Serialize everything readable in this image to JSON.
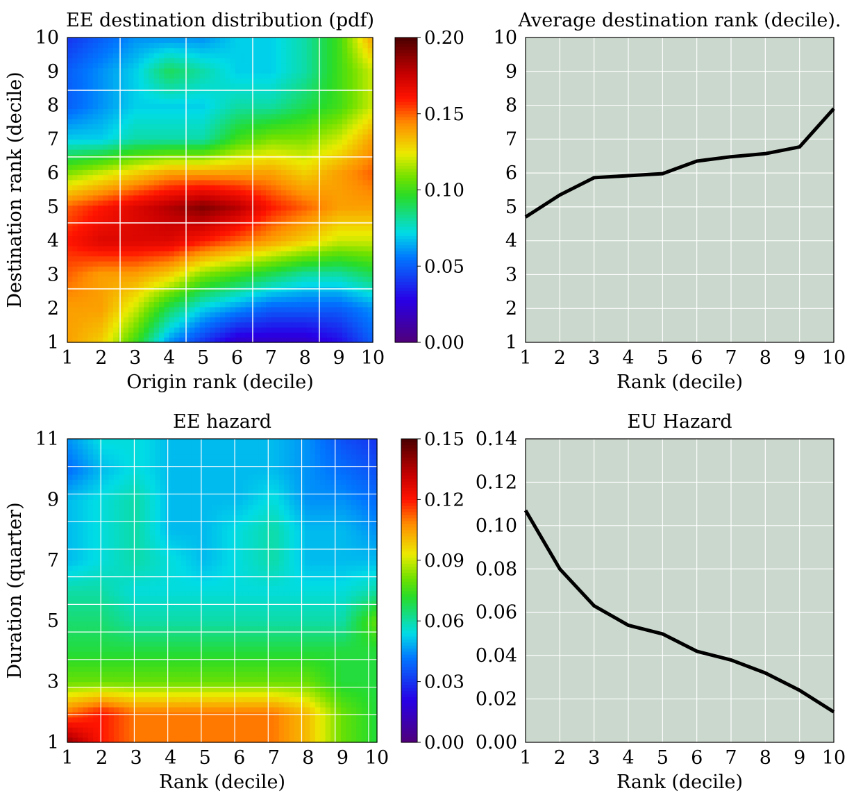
{
  "chart_data": [
    {
      "type": "heatmap",
      "title": "EE destination distribution (pdf)",
      "xlabel": "Origin rank (decile)",
      "ylabel": "Destination rank (decile)",
      "x_ticks": [
        "1",
        "2",
        "3",
        "4",
        "5",
        "6",
        "7",
        "8",
        "9",
        "10"
      ],
      "y_ticks": [
        "1",
        "2",
        "3",
        "4",
        "5",
        "6",
        "7",
        "8",
        "9",
        "10"
      ],
      "xlim": [
        1,
        10
      ],
      "ylim": [
        1,
        10
      ],
      "grid": true,
      "colorbar": {
        "min": 0.0,
        "max": 0.2,
        "ticks": [
          "0.00",
          "0.05",
          "0.10",
          "0.15",
          "0.20"
        ]
      },
      "x": [
        1,
        2,
        3,
        4,
        5,
        6,
        7,
        8,
        9,
        10
      ],
      "y": [
        1,
        2,
        3,
        4,
        5,
        6,
        7,
        8,
        9,
        10
      ],
      "z": [
        [
          0.14,
          0.13,
          0.1,
          0.06,
          0.04,
          0.02,
          0.02,
          0.02,
          0.03,
          0.05
        ],
        [
          0.14,
          0.14,
          0.12,
          0.09,
          0.07,
          0.06,
          0.05,
          0.05,
          0.05,
          0.06
        ],
        [
          0.15,
          0.14,
          0.14,
          0.13,
          0.11,
          0.1,
          0.09,
          0.08,
          0.08,
          0.09
        ],
        [
          0.16,
          0.17,
          0.17,
          0.17,
          0.16,
          0.15,
          0.14,
          0.13,
          0.12,
          0.12
        ],
        [
          0.15,
          0.16,
          0.17,
          0.18,
          0.19,
          0.18,
          0.16,
          0.15,
          0.14,
          0.14
        ],
        [
          0.11,
          0.12,
          0.13,
          0.14,
          0.14,
          0.14,
          0.14,
          0.13,
          0.14,
          0.15
        ],
        [
          0.07,
          0.07,
          0.08,
          0.08,
          0.08,
          0.1,
          0.11,
          0.11,
          0.12,
          0.14
        ],
        [
          0.05,
          0.06,
          0.07,
          0.07,
          0.07,
          0.08,
          0.08,
          0.09,
          0.1,
          0.12
        ],
        [
          0.05,
          0.06,
          0.07,
          0.09,
          0.08,
          0.07,
          0.07,
          0.08,
          0.1,
          0.12
        ],
        [
          0.04,
          0.05,
          0.06,
          0.06,
          0.06,
          0.07,
          0.07,
          0.08,
          0.1,
          0.14
        ]
      ]
    },
    {
      "type": "line",
      "title": "Average destination rank (decile).",
      "xlabel": "Rank (decile)",
      "ylabel": "",
      "x_ticks": [
        "1",
        "2",
        "3",
        "4",
        "5",
        "6",
        "7",
        "8",
        "9",
        "10"
      ],
      "y_ticks": [
        "1",
        "2",
        "3",
        "4",
        "5",
        "6",
        "7",
        "8",
        "9",
        "10"
      ],
      "xlim": [
        1,
        10
      ],
      "ylim": [
        1,
        10
      ],
      "grid": true,
      "background": "#cbd8cd",
      "x": [
        1,
        2,
        3,
        4,
        5,
        6,
        7,
        8,
        9,
        10
      ],
      "series": [
        {
          "values": [
            4.7,
            5.35,
            5.86,
            5.92,
            5.98,
            6.35,
            6.48,
            6.57,
            6.77,
            7.9
          ]
        }
      ]
    },
    {
      "type": "heatmap",
      "title": "EE hazard",
      "xlabel": "Rank (decile)",
      "ylabel": "Duration (quarter)",
      "x_ticks": [
        "1",
        "2",
        "3",
        "4",
        "5",
        "6",
        "7",
        "8",
        "9",
        "10"
      ],
      "y_ticks": [
        "1",
        "3",
        "5",
        "7",
        "9",
        "11"
      ],
      "xlim": [
        1,
        10
      ],
      "ylim": [
        1,
        11
      ],
      "grid": true,
      "colorbar": {
        "min": 0.0,
        "max": 0.15,
        "ticks": [
          "0.00",
          "0.03",
          "0.06",
          "0.09",
          "0.12",
          "0.15"
        ]
      },
      "x": [
        1,
        2,
        3,
        4,
        5,
        6,
        7,
        8,
        9,
        10
      ],
      "y": [
        1,
        2,
        3,
        4,
        5,
        6,
        7,
        8,
        9,
        10,
        11
      ],
      "z": [
        [
          0.14,
          0.12,
          0.11,
          0.11,
          0.11,
          0.11,
          0.11,
          0.1,
          0.08,
          0.07
        ],
        [
          0.11,
          0.12,
          0.11,
          0.11,
          0.11,
          0.11,
          0.11,
          0.1,
          0.08,
          0.07
        ],
        [
          0.08,
          0.08,
          0.08,
          0.08,
          0.08,
          0.08,
          0.08,
          0.08,
          0.07,
          0.07
        ],
        [
          0.07,
          0.07,
          0.07,
          0.07,
          0.07,
          0.07,
          0.07,
          0.07,
          0.07,
          0.07
        ],
        [
          0.065,
          0.065,
          0.06,
          0.06,
          0.06,
          0.06,
          0.06,
          0.06,
          0.06,
          0.08
        ],
        [
          0.06,
          0.06,
          0.055,
          0.055,
          0.055,
          0.055,
          0.055,
          0.055,
          0.055,
          0.06
        ],
        [
          0.05,
          0.055,
          0.06,
          0.055,
          0.05,
          0.055,
          0.06,
          0.05,
          0.05,
          0.05
        ],
        [
          0.05,
          0.055,
          0.06,
          0.05,
          0.05,
          0.055,
          0.06,
          0.05,
          0.05,
          0.045
        ],
        [
          0.05,
          0.055,
          0.06,
          0.05,
          0.05,
          0.05,
          0.055,
          0.045,
          0.045,
          0.04
        ],
        [
          0.04,
          0.05,
          0.055,
          0.05,
          0.05,
          0.05,
          0.05,
          0.045,
          0.04,
          0.035
        ],
        [
          0.045,
          0.055,
          0.055,
          0.05,
          0.05,
          0.05,
          0.05,
          0.045,
          0.035,
          0.03
        ]
      ]
    },
    {
      "type": "line",
      "title": "EU Hazard",
      "xlabel": "Rank (decile)",
      "ylabel": "",
      "x_ticks": [
        "1",
        "2",
        "3",
        "4",
        "5",
        "6",
        "7",
        "8",
        "9",
        "10"
      ],
      "y_ticks": [
        "0.00",
        "0.02",
        "0.04",
        "0.06",
        "0.08",
        "0.10",
        "0.12",
        "0.14"
      ],
      "xlim": [
        1,
        10
      ],
      "ylim": [
        0,
        0.14
      ],
      "grid": true,
      "background": "#cbd8cd",
      "x": [
        1,
        2,
        3,
        4,
        5,
        6,
        7,
        8,
        9,
        10
      ],
      "series": [
        {
          "values": [
            0.107,
            0.08,
            0.063,
            0.054,
            0.05,
            0.042,
            0.038,
            0.032,
            0.024,
            0.014
          ]
        }
      ]
    }
  ]
}
